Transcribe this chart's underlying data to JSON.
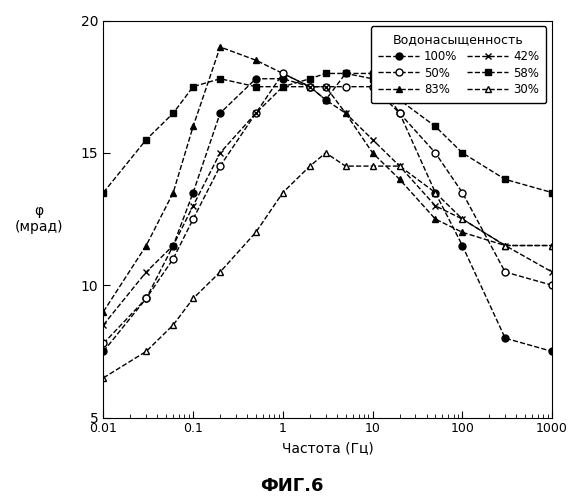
{
  "title": "ФИГ.6",
  "xlabel": "Частота (Гц)",
  "ylabel": "φ\n(мрад)",
  "legend_title": "Водонасыщенность",
  "xlim": [
    0.01,
    1000
  ],
  "ylim": [
    5,
    20
  ],
  "yticks": [
    5,
    10,
    15,
    20
  ],
  "xticks": [
    0.01,
    0.1,
    1,
    10,
    100,
    1000
  ],
  "xtick_labels": [
    "0.01",
    "0.1",
    "1",
    "10",
    "100",
    "1000"
  ],
  "series": [
    {
      "label": "100%",
      "marker": "o",
      "mfc": "black",
      "mec": "black",
      "x": [
        0.01,
        0.03,
        0.06,
        0.1,
        0.2,
        0.5,
        1.0,
        2.0,
        3.0,
        5.0,
        10.0,
        20.0,
        50.0,
        100.0,
        300.0,
        1000.0
      ],
      "y": [
        7.5,
        9.5,
        11.5,
        13.5,
        16.5,
        17.8,
        17.8,
        17.5,
        17.0,
        18.0,
        18.0,
        16.5,
        13.5,
        11.5,
        8.0,
        7.5
      ]
    },
    {
      "label": "83%",
      "marker": "^",
      "mfc": "black",
      "mec": "black",
      "x": [
        0.01,
        0.03,
        0.06,
        0.1,
        0.2,
        0.5,
        1.0,
        2.0,
        3.0,
        5.0,
        10.0,
        20.0,
        50.0,
        100.0,
        300.0,
        1000.0
      ],
      "y": [
        9.0,
        11.5,
        13.5,
        16.0,
        19.0,
        18.5,
        18.0,
        17.5,
        17.0,
        16.5,
        15.0,
        14.0,
        12.5,
        12.0,
        11.5,
        11.5
      ]
    },
    {
      "label": "58%",
      "marker": "s",
      "mfc": "black",
      "mec": "black",
      "x": [
        0.01,
        0.03,
        0.06,
        0.1,
        0.2,
        0.5,
        1.0,
        2.0,
        3.0,
        5.0,
        10.0,
        20.0,
        50.0,
        100.0,
        300.0,
        1000.0
      ],
      "y": [
        13.5,
        15.5,
        16.5,
        17.5,
        17.8,
        17.5,
        17.5,
        17.8,
        18.0,
        18.0,
        17.8,
        17.0,
        16.0,
        15.0,
        14.0,
        13.5
      ]
    },
    {
      "label": "50%",
      "marker": "o",
      "mfc": "white",
      "mec": "black",
      "x": [
        0.01,
        0.03,
        0.06,
        0.1,
        0.2,
        0.5,
        1.0,
        2.0,
        3.0,
        5.0,
        10.0,
        20.0,
        50.0,
        100.0,
        300.0,
        1000.0
      ],
      "y": [
        7.8,
        9.5,
        11.0,
        12.5,
        14.5,
        16.5,
        18.0,
        17.5,
        17.5,
        17.5,
        17.5,
        16.5,
        15.0,
        13.5,
        10.5,
        10.0
      ]
    },
    {
      "label": "42%",
      "marker": "x",
      "mfc": "black",
      "mec": "black",
      "x": [
        0.01,
        0.03,
        0.06,
        0.1,
        0.2,
        0.5,
        1.0,
        2.0,
        3.0,
        5.0,
        10.0,
        20.0,
        50.0,
        100.0,
        300.0,
        1000.0
      ],
      "y": [
        8.5,
        10.5,
        11.5,
        13.0,
        15.0,
        16.5,
        17.5,
        17.5,
        17.5,
        16.5,
        15.5,
        14.5,
        13.0,
        12.5,
        11.5,
        10.5
      ]
    },
    {
      "label": "30%",
      "marker": "^",
      "mfc": "white",
      "mec": "black",
      "x": [
        0.01,
        0.03,
        0.06,
        0.1,
        0.2,
        0.5,
        1.0,
        2.0,
        3.0,
        5.0,
        10.0,
        20.0,
        50.0,
        100.0,
        300.0,
        1000.0
      ],
      "y": [
        6.5,
        7.5,
        8.5,
        9.5,
        10.5,
        12.0,
        13.5,
        14.5,
        15.0,
        14.5,
        14.5,
        14.5,
        13.5,
        12.5,
        11.5,
        11.5
      ]
    }
  ],
  "legend_order": [
    0,
    3,
    1,
    4,
    2,
    5
  ]
}
